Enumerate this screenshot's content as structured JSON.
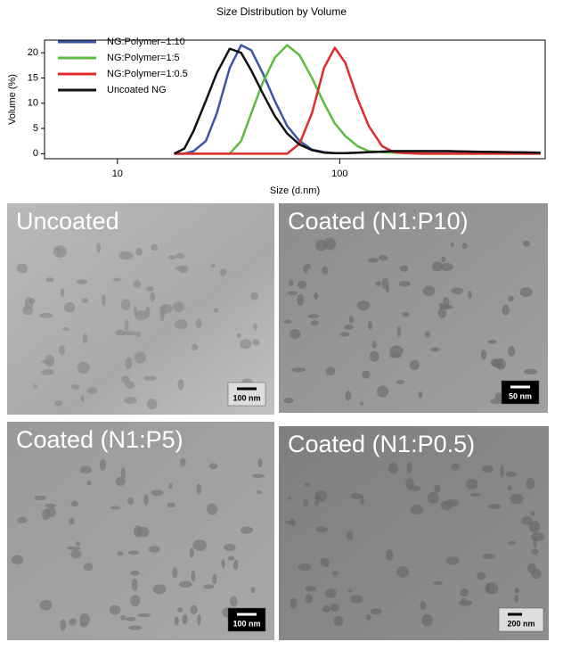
{
  "chart_data": {
    "type": "line",
    "title": "Size Distribution by Volume",
    "x_label": "Size (d.nm)",
    "y_label": "Volume (%)",
    "x": [
      18,
      20,
      22,
      25,
      28,
      32,
      36,
      40,
      45,
      51,
      58,
      66,
      75,
      85,
      95,
      106,
      120,
      135,
      155,
      175,
      200,
      230,
      300,
      400,
      550,
      800
    ],
    "series": [
      {
        "name": "NG:Polymer=1:10",
        "color": "#3c55a8",
        "values": [
          0,
          0,
          0.5,
          2.5,
          8,
          17,
          21.5,
          20.5,
          16,
          10.5,
          5.5,
          2.5,
          0.8,
          0.3,
          0.1,
          0.1,
          0.2,
          0.3,
          0.4,
          0.5,
          0.5,
          0.5,
          0.5,
          0.4,
          0.3,
          0.2
        ]
      },
      {
        "name": "NG:Polymer=1:5",
        "color": "#5dbb3f",
        "values": [
          0,
          0,
          0,
          0,
          0,
          0,
          2.5,
          8,
          14,
          19,
          21.5,
          19.5,
          15,
          10,
          6,
          3.5,
          1.5,
          0.5,
          0.3,
          0.2,
          0.1,
          0,
          0,
          0,
          0,
          0
        ]
      },
      {
        "name": "NG:Polymer=1:0.5",
        "color": "#e12a2a",
        "values": [
          0,
          0,
          0,
          0,
          0,
          0,
          0,
          0,
          0,
          0,
          0,
          2,
          8,
          17,
          21,
          18,
          11,
          5.5,
          1.5,
          0.3,
          0.1,
          0,
          0,
          0,
          0,
          0
        ]
      },
      {
        "name": "Uncoated NG",
        "color": "#111111",
        "values": [
          0,
          1,
          4.5,
          10.5,
          16,
          20.8,
          20,
          16.5,
          12,
          7.5,
          4,
          1.8,
          0.7,
          0.2,
          0.1,
          0.1,
          0.2,
          0.3,
          0.4,
          0.5,
          0.5,
          0.5,
          0.5,
          0.4,
          0.3,
          0.2
        ]
      }
    ],
    "log_x": true,
    "xlim": [
      4.7,
      840
    ],
    "xticks": [
      10,
      100
    ],
    "ylim": [
      -1,
      22.5
    ],
    "yticks": [
      0,
      5,
      10,
      15,
      20
    ],
    "legend": "top-left"
  },
  "panels": [
    {
      "label": "Uncoated",
      "scale_bar": "100 nm"
    },
    {
      "label": "Coated (N1:P10)",
      "scale_bar": "50 nm"
    },
    {
      "label": "Coated (N1:P5)",
      "scale_bar": "100 nm"
    },
    {
      "label": "Coated (N1:P0.5)",
      "scale_bar": "200 nm"
    }
  ]
}
